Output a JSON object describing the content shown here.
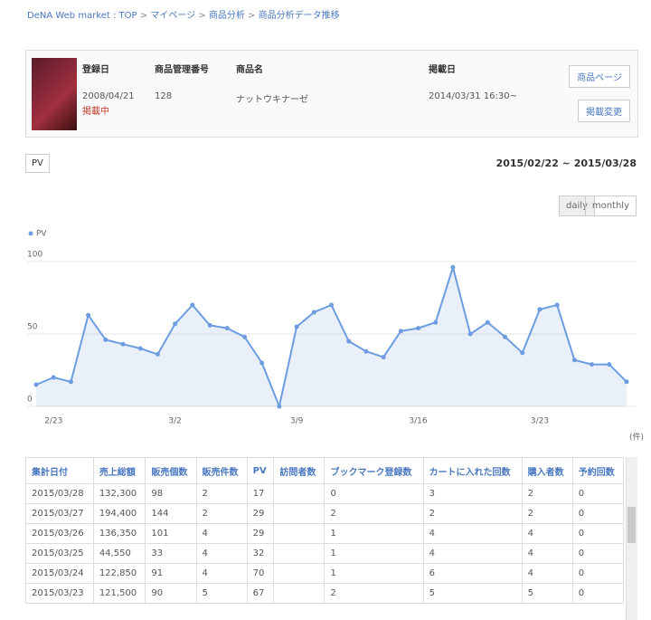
{
  "breadcrumb": [
    "DeNA Web market : TOP",
    "マイページ",
    "商品分析",
    "商品分析データ推移"
  ],
  "product": {
    "labels": [
      "登録日",
      "商品管理番号",
      "商品名",
      "掲載日"
    ],
    "values": [
      "2008/04/21",
      "128",
      "ナットウキナーゼ",
      "2014/03/31 16:30~"
    ],
    "status": "掲載中",
    "buttons": [
      "商品ページ",
      "掲載変更"
    ]
  },
  "filter": {
    "metric": "PV",
    "date_range": "2015/02/22 ~ 2015/03/28",
    "periods": [
      "daily",
      "monthly"
    ]
  },
  "chart_data": {
    "type": "area",
    "categories": [
      null,
      "2/23",
      null,
      null,
      null,
      null,
      null,
      null,
      "3/2",
      null,
      null,
      null,
      null,
      null,
      null,
      "3/9",
      null,
      null,
      null,
      null,
      null,
      null,
      "3/16",
      null,
      null,
      null,
      null,
      null,
      null,
      "3/23",
      null,
      null,
      null,
      null,
      null
    ],
    "series": [
      {
        "name": "PV",
        "color": "#6d9de0",
        "values": [
          15,
          20,
          17,
          63,
          46,
          43,
          40,
          36,
          57,
          70,
          56,
          54,
          48,
          30,
          0,
          55,
          65,
          70,
          45,
          38,
          34,
          52,
          54,
          58,
          96,
          50,
          58,
          48,
          37,
          67,
          70,
          32,
          29,
          29,
          17
        ]
      }
    ],
    "ylim": [
      0,
      100
    ],
    "yticks": [
      0,
      50,
      100
    ],
    "grid": true,
    "unit_label": "(件)"
  },
  "table": {
    "columns": [
      "集計日付",
      "売上総額",
      "販売個数",
      "販売件数",
      "PV",
      "訪問者数",
      "ブックマーク登録数",
      "カートに入れた回数",
      "購入者数",
      "予約回数"
    ],
    "rows": [
      [
        "2015/03/28",
        "132,300",
        "98",
        "2",
        "17",
        null,
        "0",
        "3",
        "2",
        "0"
      ],
      [
        "2015/03/27",
        "194,400",
        "144",
        "2",
        "29",
        null,
        "2",
        "2",
        "2",
        "0"
      ],
      [
        "2015/03/26",
        "136,350",
        "101",
        "4",
        "29",
        null,
        "1",
        "4",
        "4",
        "0"
      ],
      [
        "2015/03/25",
        "44,550",
        "33",
        "4",
        "32",
        null,
        "1",
        "4",
        "4",
        "0"
      ],
      [
        "2015/03/24",
        "122,850",
        "91",
        "4",
        "70",
        null,
        "1",
        "6",
        "4",
        "0"
      ],
      [
        "2015/03/23",
        "121,500",
        "90",
        "5",
        "67",
        null,
        "2",
        "5",
        "5",
        "0"
      ]
    ]
  }
}
